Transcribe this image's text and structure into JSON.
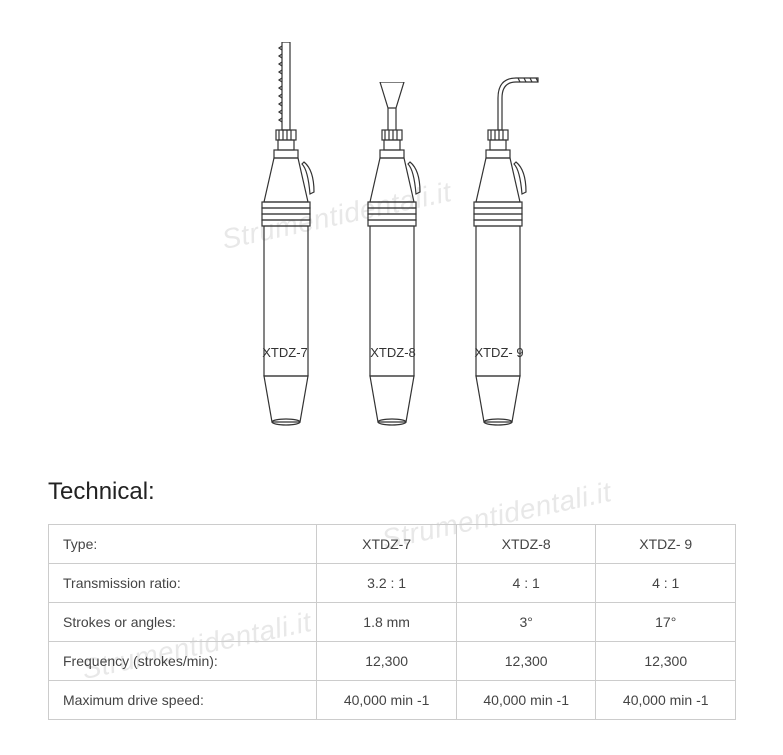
{
  "watermark_text": "Strumentidentali.it",
  "diagram": {
    "tool1_label": "XTDZ-7",
    "tool2_label": "XTDZ-8",
    "tool3_label": "XTDZ- 9",
    "stroke_color": "#333333",
    "stroke_width": 1.2
  },
  "heading": "Technical:",
  "table": {
    "rows": [
      {
        "label": "Type:",
        "c1": "XTDZ-7",
        "c2": "XTDZ-8",
        "c3": "XTDZ- 9"
      },
      {
        "label": "Transmission ratio:",
        "c1": "3.2 : 1",
        "c2": "4 : 1",
        "c3": "4 : 1"
      },
      {
        "label": "Strokes or angles:",
        "c1": "1.8 mm",
        "c2": "3°",
        "c3": "17°"
      },
      {
        "label": "Frequency (strokes/min):",
        "c1": "12,300",
        "c2": "12,300",
        "c3": "12,300"
      },
      {
        "label": "Maximum drive speed:",
        "c1": "40,000 min -1",
        "c2": "40,000 min -1",
        "c3": "40,000 min -1"
      }
    ],
    "border_color": "#cccccc",
    "text_color": "#444444",
    "font_size": 14
  }
}
